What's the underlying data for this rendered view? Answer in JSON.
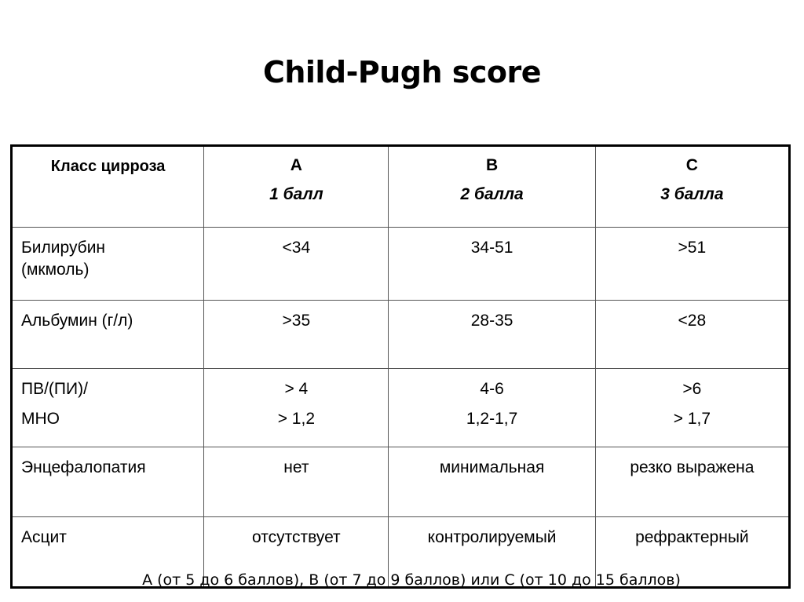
{
  "title": "Child-Pugh score",
  "table": {
    "header": {
      "first": "Класс цирроза",
      "classes": [
        {
          "letter": "A",
          "points": "1 балл"
        },
        {
          "letter": "B",
          "points": "2 балла"
        },
        {
          "letter": "C",
          "points": "3 балла"
        }
      ]
    },
    "rows": [
      {
        "label_line1": "Билирубин",
        "label_line2": "(мкмоль)",
        "values": [
          "<34",
          "34-51",
          ">51"
        ]
      },
      {
        "label_line1": "Альбумин (г/л)",
        "values": [
          ">35",
          "28-35",
          "<28"
        ]
      },
      {
        "label_line1": "ПВ/(ПИ)/",
        "label_line2": "МНО",
        "values": [
          "> 4",
          "4-6",
          ">6"
        ],
        "values2": [
          "> 1,2",
          "1,2-1,7",
          "> 1,7"
        ]
      },
      {
        "label_line1": "Энцефалопатия",
        "values": [
          "нет",
          "минимальная",
          "резко выражена"
        ]
      },
      {
        "label_line1": "Асцит",
        "values": [
          "отсутствует",
          "контролируемый",
          "рефрактерный"
        ]
      }
    ]
  },
  "footnote": "A (от 5 до 6 баллов), B (от 7 до 9 баллов) или C (от 10 до 15 баллов)"
}
